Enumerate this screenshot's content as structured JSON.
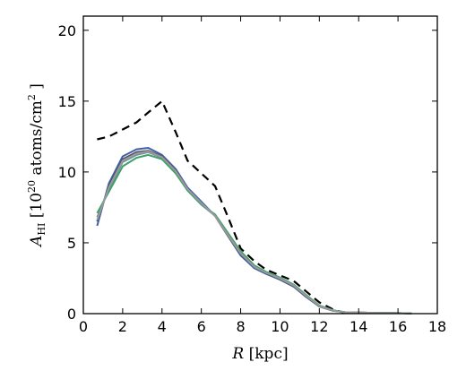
{
  "chart_data": {
    "type": "line",
    "title": "",
    "xlabel_symbol": "R",
    "xlabel_rest": " [kpc]",
    "ylabel_symbol": "A",
    "ylabel_subscript": "HI",
    "ylabel_rest": " [10",
    "ylabel_exponent": "20",
    "ylabel_units": " atoms/cm",
    "ylabel_units_exponent": "2",
    "ylabel_close": " ]",
    "xlim": [
      0,
      18
    ],
    "ylim": [
      0,
      21
    ],
    "xticks": [
      0,
      2,
      4,
      6,
      8,
      10,
      12,
      14,
      16,
      18
    ],
    "yticks": [
      0,
      5,
      10,
      15,
      20
    ],
    "grid": false,
    "series": [
      {
        "style": "dashed",
        "color": "#000000",
        "x": [
          0.7,
          1.3,
          2.0,
          2.7,
          3.3,
          4.0,
          4.7,
          5.3,
          6.0,
          6.7,
          7.3,
          8.0,
          8.7,
          9.3,
          10.0,
          10.7,
          11.3,
          12.0,
          12.7,
          13.3
        ],
        "y": [
          12.3,
          12.5,
          13.0,
          13.5,
          14.2,
          15.0,
          12.8,
          10.8,
          9.9,
          9.0,
          7.0,
          4.6,
          3.7,
          3.1,
          2.7,
          2.3,
          1.6,
          0.8,
          0.3,
          0.05
        ]
      },
      {
        "style": "solid",
        "color": "#3f5fa8",
        "x": [
          0.7,
          1.3,
          2.0,
          2.7,
          3.3,
          4.0,
          4.7,
          5.3,
          6.0,
          6.7,
          7.3,
          8.0,
          8.7,
          9.3,
          10.0,
          10.7,
          11.3,
          12.0,
          12.7,
          13.3,
          14.0,
          14.7,
          15.3,
          16.0,
          16.7
        ],
        "y": [
          6.2,
          9.2,
          11.1,
          11.6,
          11.7,
          11.2,
          10.2,
          8.9,
          7.9,
          6.9,
          5.6,
          4.1,
          3.2,
          2.8,
          2.4,
          1.9,
          1.2,
          0.5,
          0.2,
          0.1,
          0.08,
          0.06,
          0.05,
          0.04,
          0.02
        ]
      },
      {
        "style": "solid",
        "color": "#505060",
        "x": [
          0.7,
          1.3,
          2.0,
          2.7,
          3.3,
          4.0,
          4.7,
          5.3,
          6.0,
          6.7,
          7.3,
          8.0,
          8.7,
          9.3,
          10.0,
          10.7,
          11.3,
          12.0,
          12.7,
          13.3,
          14.0,
          14.7,
          15.3,
          16.0,
          16.7
        ],
        "y": [
          6.5,
          9.0,
          10.9,
          11.4,
          11.5,
          11.1,
          10.1,
          8.8,
          7.8,
          6.9,
          5.6,
          4.2,
          3.3,
          2.85,
          2.45,
          1.95,
          1.25,
          0.52,
          0.2,
          0.1,
          0.08,
          0.06,
          0.05,
          0.04,
          0.02
        ]
      },
      {
        "style": "solid",
        "color": "#6a8fa0",
        "x": [
          0.7,
          1.3,
          2.0,
          2.7,
          3.3,
          4.0,
          4.7,
          5.3,
          6.0,
          6.7,
          7.3,
          8.0,
          8.7,
          9.3,
          10.0,
          10.7,
          11.3,
          12.0,
          12.7,
          13.3,
          14.0,
          14.7,
          15.3,
          16.0,
          16.7
        ],
        "y": [
          6.8,
          8.8,
          10.7,
          11.2,
          11.4,
          11.0,
          10.0,
          8.7,
          7.7,
          6.9,
          5.7,
          4.3,
          3.35,
          2.9,
          2.5,
          2.0,
          1.3,
          0.55,
          0.22,
          0.1,
          0.08,
          0.06,
          0.05,
          0.04,
          0.02
        ]
      },
      {
        "style": "solid",
        "color": "#3fa06a",
        "x": [
          0.7,
          1.3,
          2.0,
          2.7,
          3.3,
          4.0,
          4.7,
          5.3,
          6.0,
          6.7,
          7.3,
          8.0,
          8.7,
          9.3,
          10.0,
          10.7,
          11.3,
          12.0,
          12.7,
          13.3,
          14.0,
          14.7,
          15.3,
          16.0,
          16.7
        ],
        "y": [
          7.1,
          8.6,
          10.4,
          11.0,
          11.2,
          10.9,
          9.9,
          8.7,
          7.7,
          7.0,
          5.8,
          4.4,
          3.4,
          2.95,
          2.55,
          2.05,
          1.35,
          0.58,
          0.24,
          0.1,
          0.08,
          0.06,
          0.05,
          0.04,
          0.02
        ]
      },
      {
        "style": "solid",
        "color": "#9a9a9a",
        "x": [
          0.7,
          1.3,
          2.0,
          2.7,
          3.3,
          4.0,
          4.7,
          5.3,
          6.0,
          6.7,
          7.3,
          8.0,
          8.7,
          9.3,
          10.0,
          10.7,
          11.3,
          12.0,
          12.7,
          13.3,
          14.0,
          14.7,
          15.3,
          16.0,
          16.7
        ],
        "y": [
          6.6,
          8.9,
          10.8,
          11.3,
          11.45,
          11.05,
          10.05,
          8.8,
          7.8,
          6.9,
          5.65,
          4.25,
          3.3,
          2.88,
          2.48,
          1.98,
          1.28,
          0.54,
          0.21,
          0.1,
          0.08,
          0.06,
          0.05,
          0.04,
          0.02
        ]
      }
    ]
  }
}
